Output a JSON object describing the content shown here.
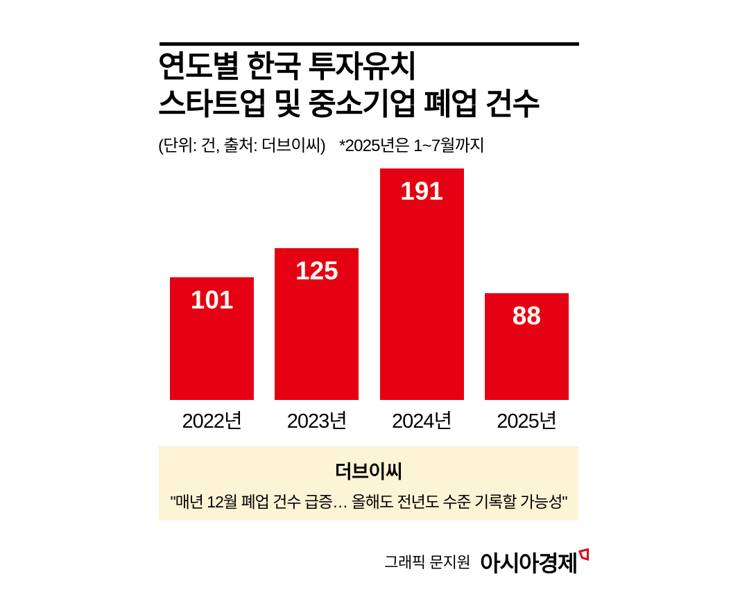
{
  "header": {
    "title_line1": "연도별 한국 투자유치",
    "title_line2": "스타트업 및 중소기업 폐업 건수",
    "unit_source": "(단위: 건, 출처: 더브이씨)",
    "note": "*2025년은 1~7월까지"
  },
  "chart_data": {
    "type": "bar",
    "title": "연도별 한국 투자유치 스타트업 및 중소기업 폐업 건수",
    "categories": [
      "2022년",
      "2023년",
      "2024년",
      "2025년"
    ],
    "values": [
      101,
      125,
      191,
      88
    ],
    "xlabel": "",
    "ylabel": "",
    "ylim": [
      0,
      200
    ],
    "grid": false,
    "legend": false,
    "bar_color": "#e60013",
    "value_label_color": "#fffdf4",
    "value_labels_inside_top": true
  },
  "callout": {
    "source": "더브이씨",
    "quote": "\"매년 12월 폐업 건수 급증… 올해도 전년도 수준 기록할 가능성\""
  },
  "footer": {
    "credit": "그래픽 문지원",
    "brand": "아시아경제"
  },
  "colors": {
    "bar_red": "#e60013",
    "callout_bg": "#fdf3d5",
    "rule_black": "#000000",
    "background": "#ffffff",
    "brand_icon_red": "#e60013"
  }
}
